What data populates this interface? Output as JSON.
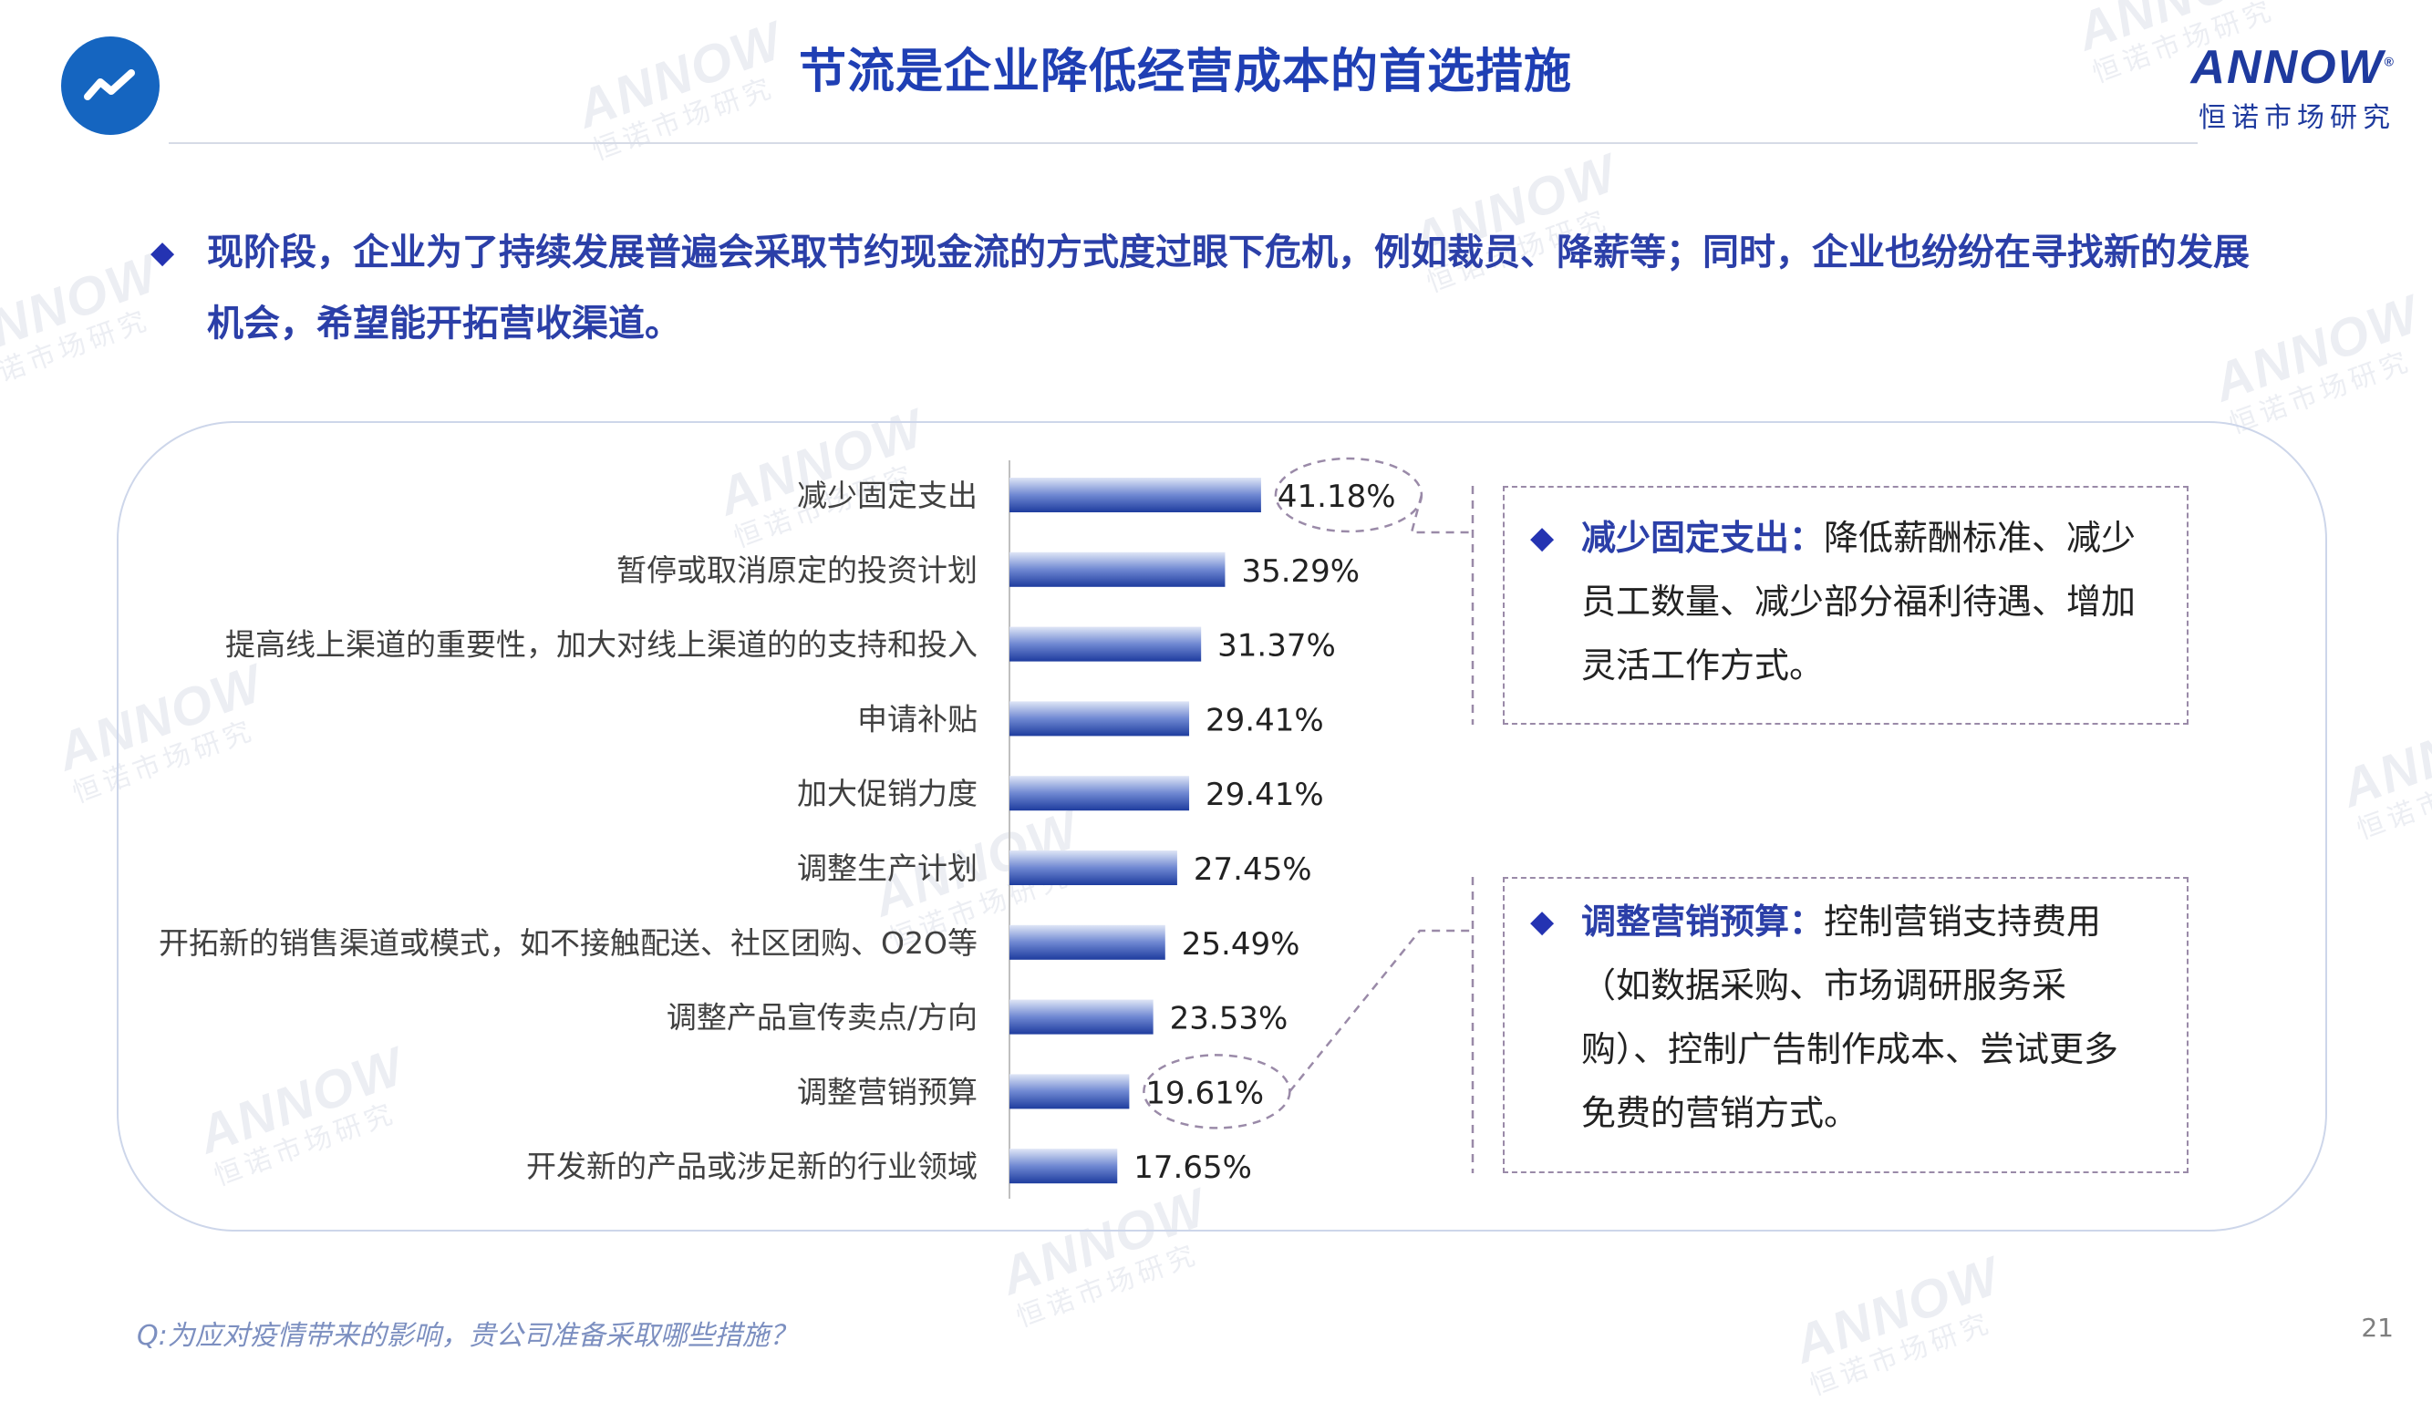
{
  "header": {
    "title": "节流是企业降低经营成本的首选措施",
    "icon": "trend-line-icon",
    "brand_name": "ANNOW",
    "brand_registered": "®",
    "brand_sub": "恒诺市场研究"
  },
  "intro": {
    "bullet": "◆",
    "text": "现阶段，企业为了持续发展普遍会采取节约现金流的方式度过眼下危机，例如裁员、降薪等；同时，企业也纷纷在寻找新的发展机会，希望能开拓营收渠道。"
  },
  "chart_data": {
    "type": "bar",
    "orientation": "horizontal",
    "categories": [
      "减少固定支出",
      "暂停或取消原定的投资计划",
      "提高线上渠道的重要性，加大对线上渠道的的支持和投入",
      "申请补贴",
      "加大促销力度",
      "调整生产计划",
      "开拓新的销售渠道或模式，如不接触配送、社区团购、O2O等",
      "调整产品宣传卖点/方向",
      "调整营销预算",
      "开发新的产品或涉足新的行业领域"
    ],
    "values": [
      41.18,
      35.29,
      31.37,
      29.41,
      29.41,
      27.45,
      25.49,
      23.53,
      19.61,
      17.65
    ],
    "value_labels": [
      "41.18%",
      "35.29%",
      "31.37%",
      "29.41%",
      "29.41%",
      "27.45%",
      "25.49%",
      "23.53%",
      "19.61%",
      "17.65%"
    ],
    "highlighted": [
      "减少固定支出",
      "调整营销预算"
    ],
    "bar_color": "#2d4fb5",
    "grid": false
  },
  "callouts": [
    {
      "bullet": "◆",
      "head": "减少固定支出：",
      "text": "降低薪酬标准、减少员工数量、减少部分福利待遇、增加灵活工作方式。"
    },
    {
      "bullet": "◆",
      "head": "调整营销预算：",
      "text": "控制营销支持费用（如数据采购、市场调研服务采购）、控制广告制作成本、尝试更多免费的营销方式。"
    }
  ],
  "footer": {
    "question": "Q:为应对疫情带来的影响，贵公司准备采取哪些措施？",
    "page": "21"
  },
  "colors": {
    "title": "#1f3fb4",
    "accent": "#2433b2",
    "brand": "#1e3a9e"
  }
}
